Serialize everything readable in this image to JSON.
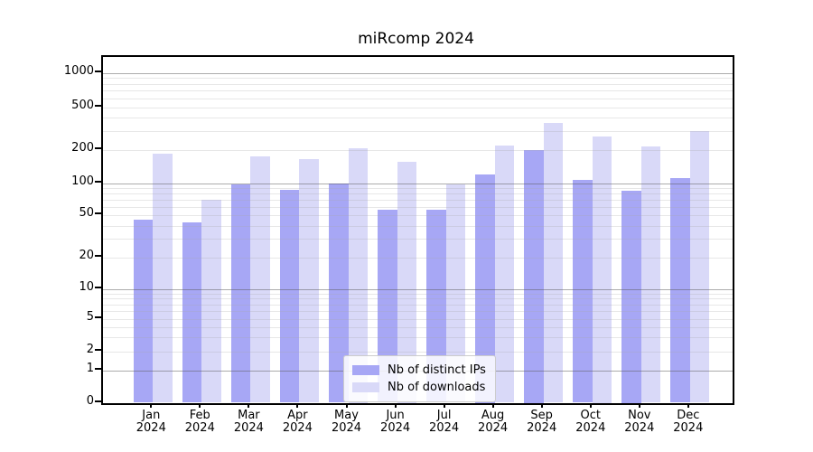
{
  "title": "miRcomp 2024",
  "chart_data": {
    "type": "bar",
    "title": "miRcomp 2024",
    "categories": [
      "Jan 2024",
      "Feb 2024",
      "Mar 2024",
      "Apr 2024",
      "May 2024",
      "Jun 2024",
      "Jul 2024",
      "Aug 2024",
      "Sep 2024",
      "Oct 2024",
      "Nov 2024",
      "Dec 2024"
    ],
    "x_tick_line1": [
      "Jan",
      "Feb",
      "Mar",
      "Apr",
      "May",
      "Jun",
      "Jul",
      "Aug",
      "Sep",
      "Oct",
      "Nov",
      "Dec"
    ],
    "x_tick_line2": "2024",
    "series": [
      {
        "name": "Nb of distinct IPs",
        "color": "#a7a7f5",
        "values": [
          45,
          43,
          97,
          86,
          100,
          56,
          56,
          120,
          200,
          107,
          85,
          112
        ]
      },
      {
        "name": "Nb of downloads",
        "color": "#d9d9f8",
        "values": [
          185,
          70,
          175,
          165,
          210,
          158,
          97,
          220,
          355,
          270,
          218,
          300
        ]
      }
    ],
    "xlabel": "",
    "ylabel": "",
    "yscale": "symlog",
    "y_ticks": [
      0,
      1,
      2,
      5,
      10,
      20,
      50,
      100,
      200,
      500,
      1000
    ],
    "y_minor_gridlines": [
      2,
      3,
      4,
      5,
      6,
      7,
      8,
      9,
      20,
      30,
      40,
      50,
      60,
      70,
      80,
      90,
      200,
      300,
      400,
      500,
      600,
      700,
      800,
      900
    ],
    "y_major_gridlines": [
      1,
      10,
      100,
      1000
    ],
    "ylim": [
      0,
      1375
    ],
    "grid": true,
    "legend_position": "lower center"
  },
  "colors": {
    "axis": "#000000",
    "major_grid": "#adadad",
    "minor_grid": "#e2e2e2",
    "legend_border": "#cccccc",
    "background": "#ffffff"
  }
}
